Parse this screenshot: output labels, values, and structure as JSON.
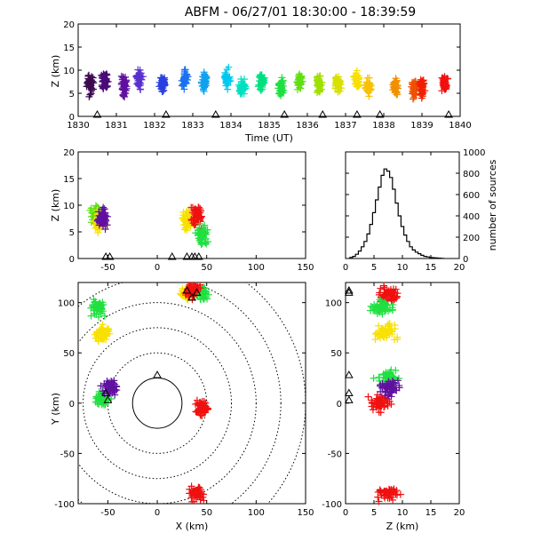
{
  "chart_data": [
    {
      "panel": "time-height",
      "type": "scatter",
      "title": "ABFM - 06/27/01 18:30:00 - 18:39:59",
      "xlabel": "Time (UT)",
      "ylabel": "Z (km)",
      "xlim": [
        1830,
        1840
      ],
      "ylim": [
        0,
        20
      ],
      "x_ticks": [
        "1830",
        "1831",
        "1832",
        "1833",
        "1834",
        "1835",
        "1836",
        "1837",
        "1838",
        "1839",
        "1840"
      ],
      "y_ticks": [
        "0",
        "5",
        "10",
        "15",
        "20"
      ],
      "color_by": "time",
      "sources": [
        {
          "x": 1830.3,
          "z": 7.0,
          "color": "#3c0a50"
        },
        {
          "x": 1830.7,
          "z": 7.5,
          "color": "#4a0a78"
        },
        {
          "x": 1831.2,
          "z": 6.5,
          "color": "#6010a0"
        },
        {
          "x": 1831.6,
          "z": 8.0,
          "color": "#5a30d0"
        },
        {
          "x": 1832.2,
          "z": 7.0,
          "color": "#2a40e0"
        },
        {
          "x": 1832.8,
          "z": 8.0,
          "color": "#1a70f0"
        },
        {
          "x": 1833.3,
          "z": 7.5,
          "color": "#10a0f0"
        },
        {
          "x": 1833.9,
          "z": 8.0,
          "color": "#00c8f0"
        },
        {
          "x": 1834.3,
          "z": 6.5,
          "color": "#00e0c0"
        },
        {
          "x": 1834.8,
          "z": 7.5,
          "color": "#00e080"
        },
        {
          "x": 1835.3,
          "z": 6.5,
          "color": "#20e040"
        },
        {
          "x": 1835.8,
          "z": 7.5,
          "color": "#60e010"
        },
        {
          "x": 1836.3,
          "z": 7.0,
          "color": "#a0e000"
        },
        {
          "x": 1836.8,
          "z": 7.0,
          "color": "#d8e000"
        },
        {
          "x": 1837.3,
          "z": 7.5,
          "color": "#f8e000"
        },
        {
          "x": 1837.6,
          "z": 6.5,
          "color": "#f8c000"
        },
        {
          "x": 1838.3,
          "z": 6.5,
          "color": "#f09000"
        },
        {
          "x": 1838.8,
          "z": 6.0,
          "color": "#f05000"
        },
        {
          "x": 1839.0,
          "z": 6.5,
          "color": "#f02000"
        },
        {
          "x": 1839.6,
          "z": 7.0,
          "color": "#f01010"
        }
      ],
      "stations_x": [
        1830.5,
        1832.3,
        1833.6,
        1835.4,
        1836.4,
        1837.3,
        1837.9,
        1839.7
      ]
    },
    {
      "panel": "x-z",
      "type": "scatter",
      "xlabel": "",
      "ylabel": "Z (km)",
      "xlim": [
        -80,
        150
      ],
      "ylim": [
        0,
        20
      ],
      "x_ticks": [
        "-50",
        "0",
        "50",
        "100",
        "150"
      ],
      "y_ticks": [
        "0",
        "5",
        "10",
        "15",
        "20"
      ],
      "clusters": [
        {
          "x": -62,
          "z": 8.0,
          "color": "#60e010"
        },
        {
          "x": -58,
          "z": 7.0,
          "color": "#f8e000"
        },
        {
          "x": -55,
          "z": 7.5,
          "color": "#6010a0"
        },
        {
          "x": 30,
          "z": 7.0,
          "color": "#f8e000"
        },
        {
          "x": 40,
          "z": 8.0,
          "color": "#f01010"
        },
        {
          "x": 45,
          "z": 4.5,
          "color": "#20e040"
        }
      ],
      "stations_x": [
        -52,
        -48,
        15,
        30,
        35,
        38,
        42
      ]
    },
    {
      "panel": "height-histogram",
      "type": "line",
      "ylabel": "number of sources",
      "xlim": [
        0,
        20
      ],
      "ylim": [
        0,
        1000
      ],
      "x_ticks": [
        "0",
        "5",
        "10",
        "15",
        "20"
      ],
      "y_ticks": [
        "0",
        "200",
        "400",
        "600",
        "800",
        "1000"
      ],
      "x": [
        1,
        1.5,
        2,
        2.5,
        3,
        3.5,
        4,
        4.5,
        5,
        5.5,
        6,
        6.5,
        7,
        7.5,
        8,
        8.5,
        9,
        9.5,
        10,
        10.5,
        11,
        11.5,
        12,
        12.5,
        13,
        13.5,
        14,
        14.5,
        15,
        15.5,
        16,
        16.5,
        17
      ],
      "values": [
        10,
        20,
        40,
        70,
        110,
        160,
        230,
        320,
        430,
        550,
        670,
        780,
        840,
        820,
        760,
        650,
        520,
        400,
        300,
        220,
        160,
        110,
        80,
        60,
        45,
        30,
        20,
        15,
        10,
        8,
        5,
        3,
        1
      ]
    },
    {
      "panel": "plan-view",
      "type": "scatter",
      "xlabel": "X (km)",
      "ylabel": "Y (km)",
      "xlim": [
        -80,
        150
      ],
      "ylim": [
        -100,
        120
      ],
      "x_ticks": [
        "-50",
        "0",
        "50",
        "100",
        "150"
      ],
      "y_ticks": [
        "-100",
        "-50",
        "0",
        "50",
        "100"
      ],
      "range_rings_km": [
        25,
        50,
        75,
        100,
        125,
        150
      ],
      "clusters": [
        {
          "x": -60,
          "y": 95,
          "color": "#20e040"
        },
        {
          "x": -55,
          "y": 70,
          "color": "#f8e000"
        },
        {
          "x": -55,
          "y": 5,
          "color": "#20e040"
        },
        {
          "x": -48,
          "y": 15,
          "color": "#6010a0"
        },
        {
          "x": 30,
          "y": 110,
          "color": "#f8e000"
        },
        {
          "x": 45,
          "y": 110,
          "color": "#20e040"
        },
        {
          "x": 35,
          "y": 112,
          "color": "#f01010"
        },
        {
          "x": 45,
          "y": -5,
          "color": "#f01010"
        },
        {
          "x": 40,
          "y": -90,
          "color": "#f01010"
        }
      ],
      "stations": [
        {
          "x": -52,
          "y": 10
        },
        {
          "x": -50,
          "y": 3
        },
        {
          "x": 30,
          "y": 112
        },
        {
          "x": 35,
          "y": 105
        },
        {
          "x": 40,
          "y": 110
        },
        {
          "x": 0,
          "y": 28
        }
      ]
    },
    {
      "panel": "z-y",
      "type": "scatter",
      "xlabel": "Z (km)",
      "ylabel": "",
      "xlim": [
        0,
        20
      ],
      "ylim": [
        -100,
        120
      ],
      "x_ticks": [
        "0",
        "5",
        "10",
        "15",
        "20"
      ],
      "y_ticks": [
        "-100",
        "-50",
        "0",
        "50",
        "100"
      ],
      "clusters": [
        {
          "z": 7.5,
          "y": 108,
          "color": "#f01010"
        },
        {
          "z": 6.5,
          "y": 95,
          "color": "#20e040"
        },
        {
          "z": 7.0,
          "y": 70,
          "color": "#f8e000"
        },
        {
          "z": 7.5,
          "y": 25,
          "color": "#20e040"
        },
        {
          "z": 6.0,
          "y": 0,
          "color": "#f01010"
        },
        {
          "z": 8.0,
          "y": 15,
          "color": "#6010a0"
        },
        {
          "z": 7.5,
          "y": -90,
          "color": "#f01010"
        }
      ],
      "stations_y": [
        112,
        110,
        10,
        3,
        28
      ]
    }
  ]
}
